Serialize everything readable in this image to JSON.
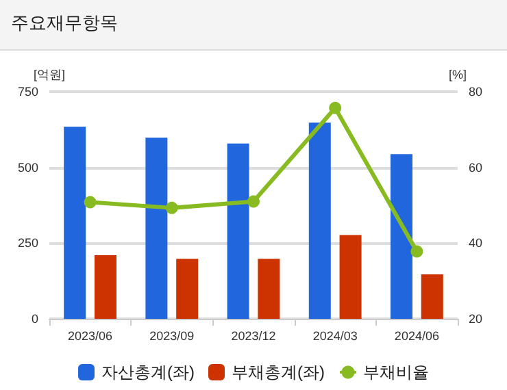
{
  "chart_data": {
    "type": "bar",
    "title": "주요재무항목",
    "ylabel": "[억원]",
    "y2label": "[%]",
    "categories": [
      "2023/06",
      "2023/09",
      "2023/12",
      "2024/03",
      "2024/06"
    ],
    "series": [
      {
        "name": "자산총계(좌)",
        "color": "#2266dd",
        "values": [
          634,
          598,
          579,
          648,
          544
        ]
      },
      {
        "name": "부채총계(좌)",
        "color": "#cc3300",
        "values": [
          210,
          198,
          198,
          277,
          147
        ]
      },
      {
        "name": "부채비율",
        "type": "line",
        "axis": "y2",
        "color": "#88bb22",
        "values": [
          50.8,
          49.3,
          51.0,
          75.7,
          37.8
        ]
      }
    ],
    "ylim": [
      0,
      750
    ],
    "yticks": [
      0,
      250,
      500,
      750
    ],
    "y2lim": [
      20,
      80
    ],
    "y2ticks": [
      20,
      40,
      60,
      80
    ],
    "grid": "y",
    "legend": "bottom",
    "marker": "circle"
  }
}
